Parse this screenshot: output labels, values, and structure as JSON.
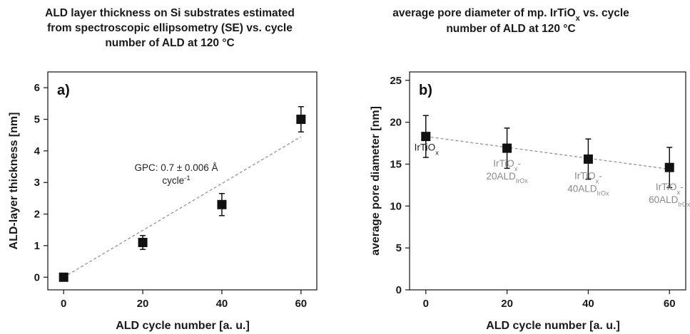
{
  "chart_data": [
    {
      "type": "scatter",
      "title_lines": [
        "ALD layer thickness on Si substrates estimated",
        "from spectroscopic ellipsometry (SE) vs. cycle",
        "number of ALD at 120 °C"
      ],
      "panel_label": "a)",
      "xlabel": "ALD cycle number [a. u.]",
      "ylabel": "ALD-layer thickness [nm]",
      "xlim": [
        -4,
        64
      ],
      "ylim": [
        -0.4,
        6.5
      ],
      "xticks": [
        0,
        20,
        40,
        60
      ],
      "yticks": [
        0,
        1,
        2,
        3,
        4,
        5,
        6
      ],
      "points": [
        {
          "x": 0,
          "y": 0.0,
          "err": 0.05
        },
        {
          "x": 20,
          "y": 1.1,
          "err": 0.22
        },
        {
          "x": 40,
          "y": 2.3,
          "err": 0.35
        },
        {
          "x": 60,
          "y": 5.0,
          "err": 0.4
        }
      ],
      "fit_line": {
        "x": [
          0,
          60
        ],
        "y": [
          0.0,
          4.45
        ]
      },
      "annotation": {
        "line1": "GPC: 0.7 ± 0.006 Å",
        "line2_base": "cycle",
        "line2_sup": "-1"
      }
    },
    {
      "type": "scatter",
      "title_lines_b": {
        "line1_pre": "average pore diameter of mp. IrTiO",
        "line1_sub": "x",
        "line1_post": " vs. cycle",
        "line2": "number of ALD at 120 °C"
      },
      "panel_label": "b)",
      "xlabel": "ALD cycle number [a. u.]",
      "ylabel": "average pore diameter [nm]",
      "xlim": [
        -4,
        64
      ],
      "ylim": [
        0,
        26
      ],
      "xticks": [
        0,
        20,
        40,
        60
      ],
      "yticks": [
        0,
        5,
        10,
        15,
        20,
        25
      ],
      "points": [
        {
          "x": 0,
          "y": 18.3,
          "err": 2.5
        },
        {
          "x": 20,
          "y": 16.9,
          "err": 2.4
        },
        {
          "x": 40,
          "y": 15.6,
          "err": 2.4
        },
        {
          "x": 60,
          "y": 14.6,
          "err": 2.4
        }
      ],
      "fit_line": {
        "x": [
          0,
          60
        ],
        "y": [
          18.3,
          14.4
        ]
      },
      "point_labels": [
        {
          "base": "IrTiO",
          "sub": "x",
          "color": "#222222"
        },
        {
          "l1_base": "IrTiO",
          "l1_sub": "x",
          "l1_post": "-",
          "l2_base": "20ALD",
          "l2_sub": "IrOx",
          "color": "#8a8a8a"
        },
        {
          "l1_base": "IrTiO",
          "l1_sub": "x",
          "l1_post": "-",
          "l2_base": "40ALD",
          "l2_sub": "IrOx",
          "color": "#8a8a8a"
        },
        {
          "l1_base": "IrTiO",
          "l1_sub": "x",
          "l1_post": "-",
          "l2_base": "60ALD",
          "l2_sub": "IrOx",
          "color": "#8a8a8a"
        }
      ]
    }
  ]
}
